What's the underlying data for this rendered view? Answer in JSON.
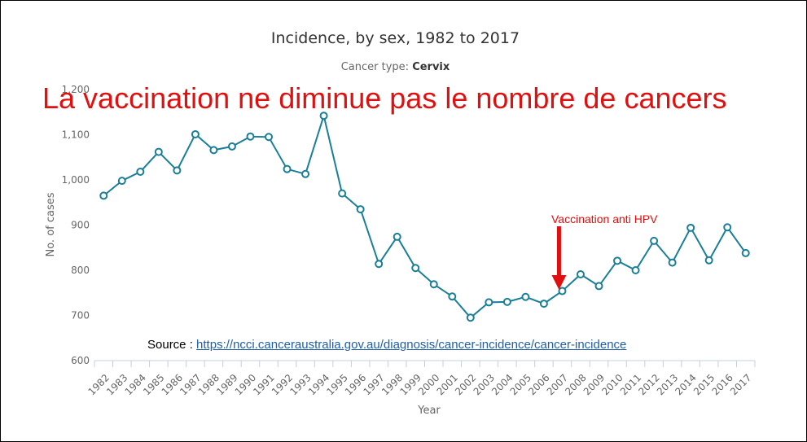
{
  "chart_data": {
    "type": "line",
    "title": "Incidence, by sex, 1982 to 2017",
    "subtitle_label": "Cancer type:",
    "subtitle_value": "Cervix",
    "xlabel": "Year",
    "ylabel": "No. of cases",
    "ylim": [
      600,
      1200
    ],
    "yticks": [
      "600",
      "700",
      "800",
      "900",
      "1,000",
      "1,100",
      "1,200"
    ],
    "grid": false,
    "x": [
      "1982",
      "1983",
      "1984",
      "1985",
      "1986",
      "1987",
      "1988",
      "1989",
      "1990",
      "1991",
      "1992",
      "1993",
      "1994",
      "1995",
      "1996",
      "1997",
      "1998",
      "1999",
      "2000",
      "2001",
      "2002",
      "2003",
      "2004",
      "2005",
      "2006",
      "2007",
      "2008",
      "2009",
      "2010",
      "2011",
      "2012",
      "2013",
      "2014",
      "2015",
      "2016",
      "2017"
    ],
    "series": [
      {
        "values": [
          965,
          998,
          1018,
          1062,
          1021,
          1101,
          1066,
          1074,
          1096,
          1095,
          1024,
          1013,
          1142,
          970,
          935,
          814,
          874,
          805,
          769,
          742,
          695,
          729,
          730,
          741,
          726,
          754,
          791,
          765,
          821,
          800,
          865,
          817,
          894,
          822,
          895,
          838
        ],
        "color": "#1a7f96"
      }
    ]
  },
  "overlay": {
    "headline": "La vaccination ne diminue pas le nombre de cancers",
    "annotation": "Vaccination anti HPV",
    "annotation_year": "2007",
    "source_prefix": "Source :",
    "source_link": "https://ncci.canceraustralia.gov.au/diagnosis/cancer-incidence/cancer-incidence",
    "accent_color": "#e01010"
  }
}
